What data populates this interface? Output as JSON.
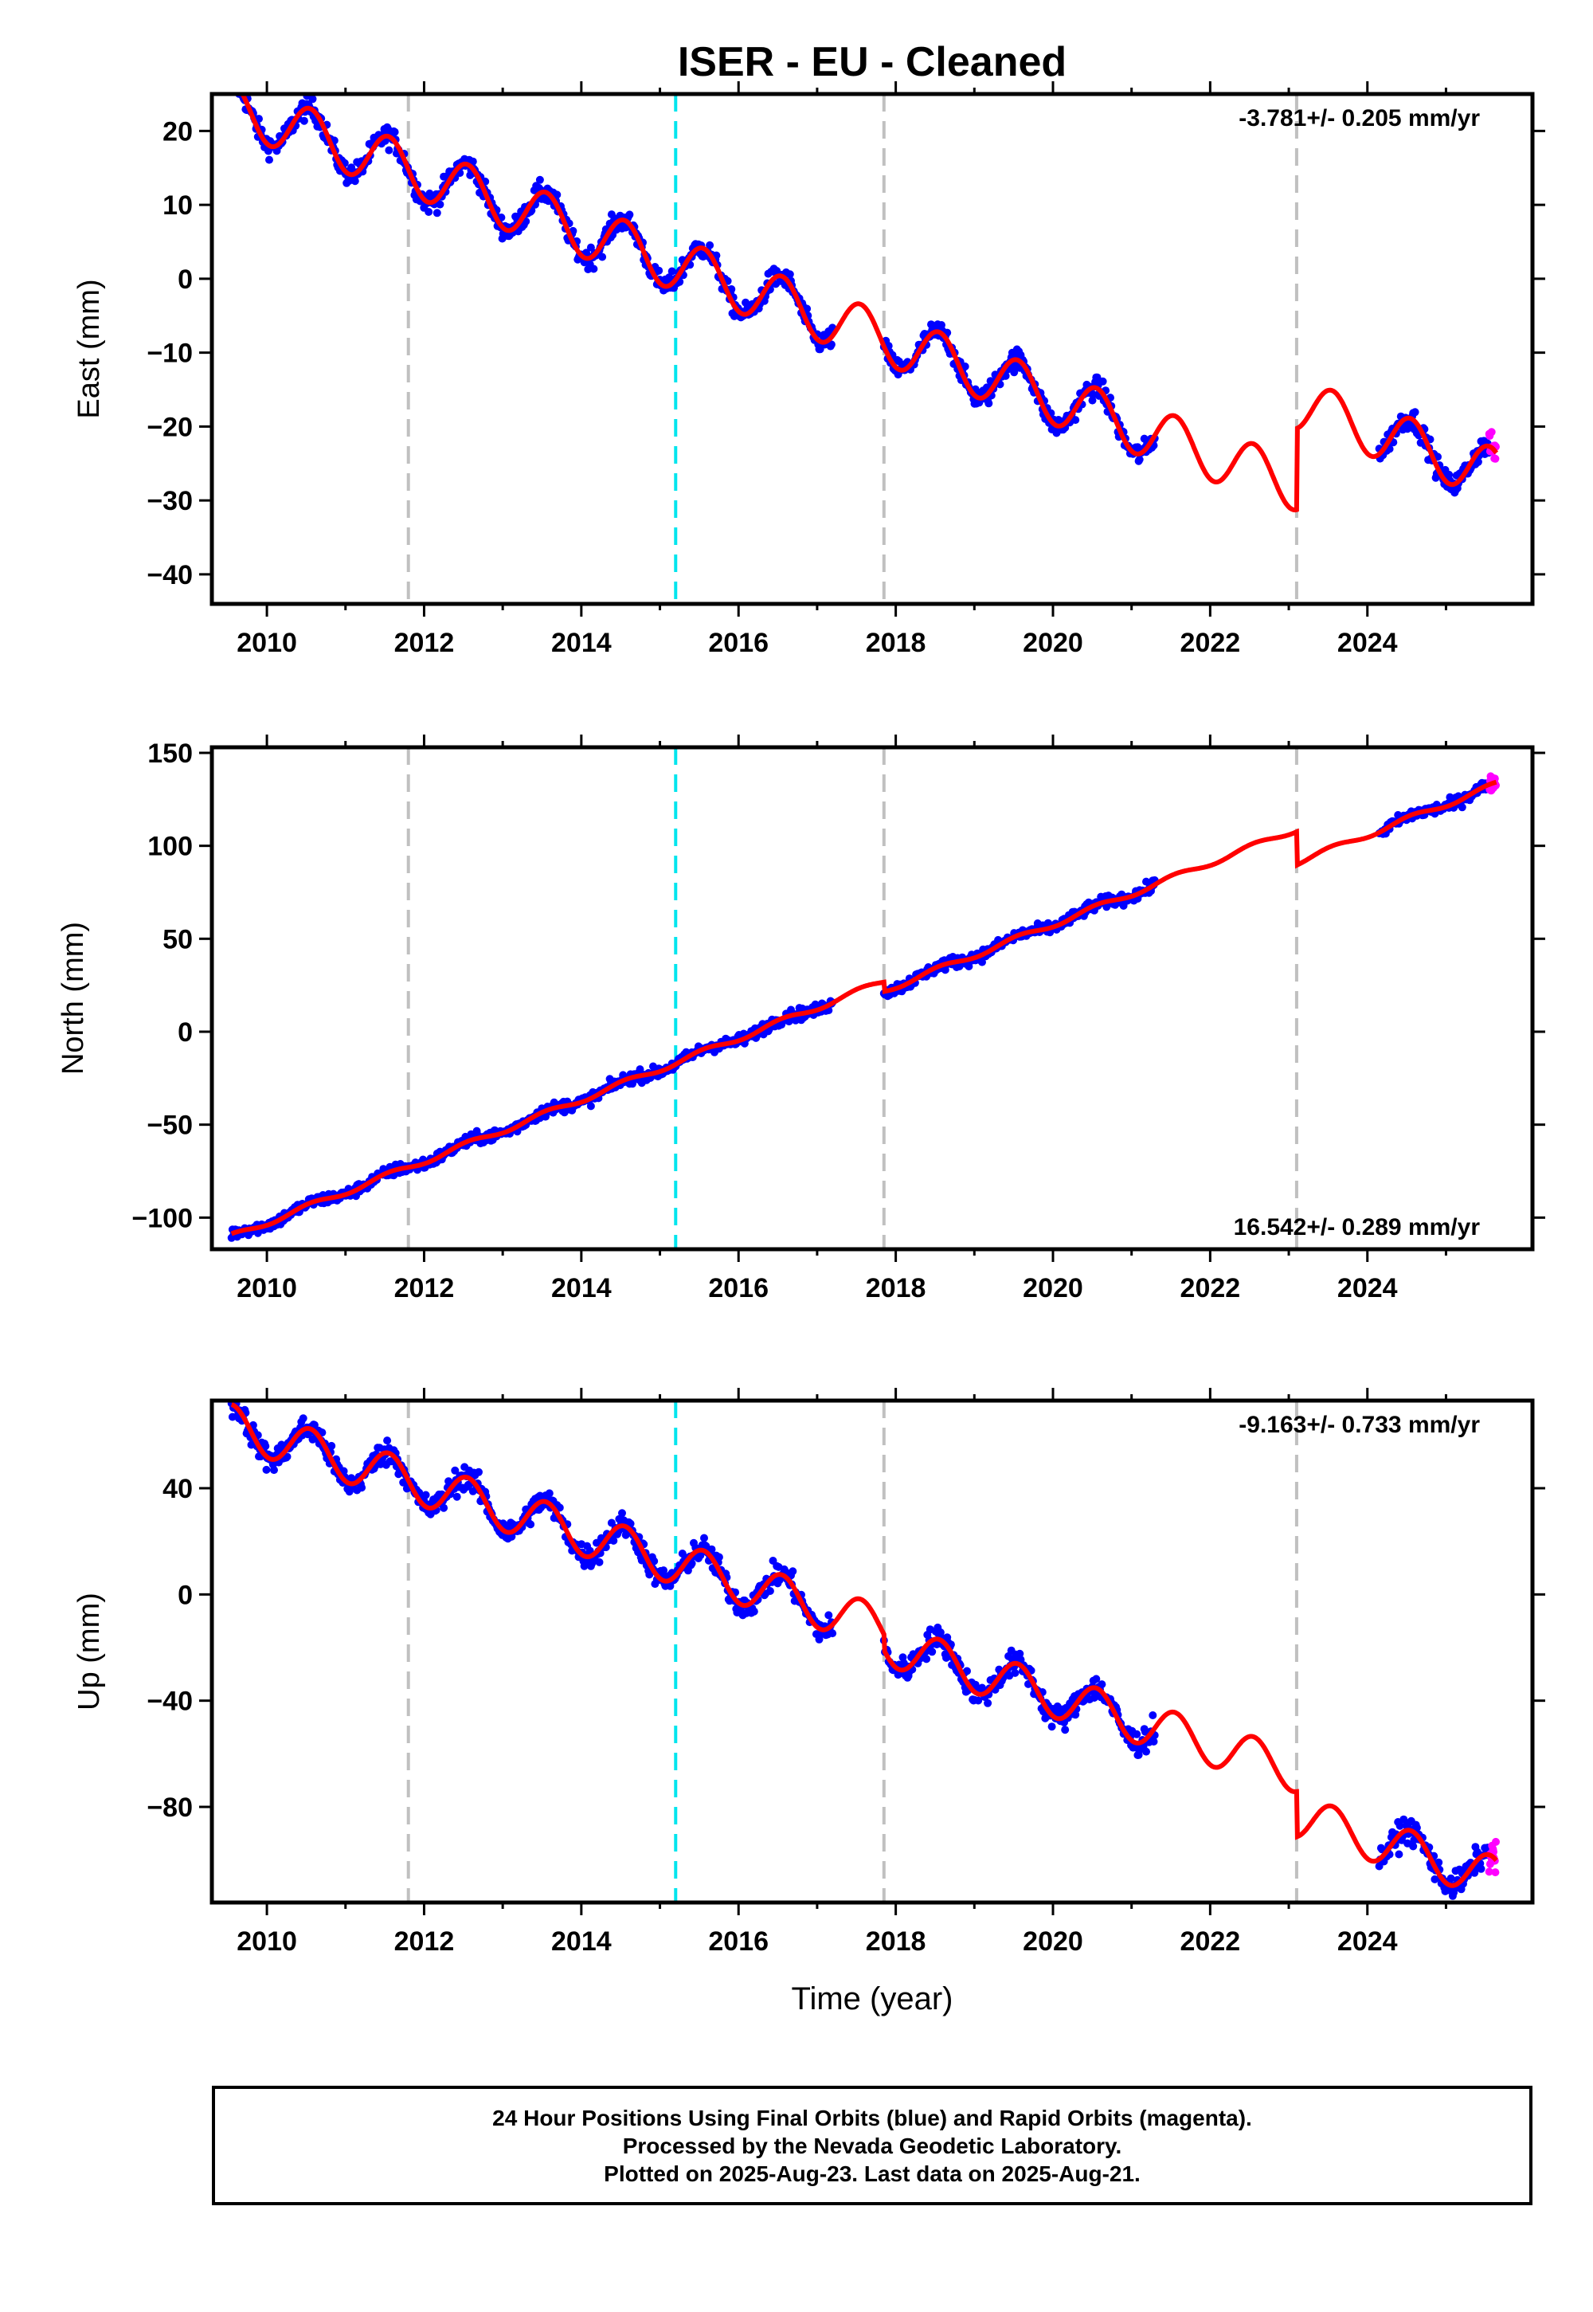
{
  "chart_data": [
    {
      "type": "scatter",
      "panel": "east",
      "title": "ISER  - EU - Cleaned",
      "ylabel": "East (mm)",
      "xlabel": "",
      "xlim": [
        2009.3,
        2026.1
      ],
      "ylim": [
        -44,
        25
      ],
      "yticks": [
        -40,
        -30,
        -20,
        -10,
        0,
        10,
        20
      ],
      "ytick_labels": [
        "−40",
        "−30",
        "−20",
        "−10",
        "0",
        "10",
        "20"
      ],
      "xticks": [
        2010,
        2012,
        2014,
        2016,
        2018,
        2020,
        2022,
        2024
      ],
      "xtick_labels": [
        "2010",
        "2012",
        "2014",
        "2016",
        "2018",
        "2020",
        "2022",
        "2024"
      ],
      "rate_label": "-3.781+/- 0.205 mm/yr",
      "rate_position": "top-right",
      "model": {
        "start": 23.5,
        "rate": -3.781,
        "amp": 3.5,
        "steps": [
          {
            "t": 2011.8,
            "dy": 0
          },
          {
            "t": 2015.2,
            "dy": 0
          },
          {
            "t": 2017.85,
            "dy": 0
          },
          {
            "t": 2023.1,
            "dy": 11
          }
        ]
      },
      "data_segments": [
        [
          2009.55,
          2017.2
        ],
        [
          2017.85,
          2021.3
        ],
        [
          2024.15,
          2025.55
        ]
      ],
      "rapid_segment": [
        2025.55,
        2025.64
      ],
      "scatter_spread": 1.4,
      "series": [
        {
          "name": "Final Orbits",
          "color": "#0000ff"
        },
        {
          "name": "Rapid Orbits",
          "color": "#ff00ff"
        },
        {
          "name": "Model",
          "color": "#ff0000"
        }
      ]
    },
    {
      "type": "scatter",
      "panel": "north",
      "ylabel": "North (mm)",
      "xlabel": "",
      "xlim": [
        2009.3,
        2026.1
      ],
      "ylim": [
        -117,
        153
      ],
      "yticks": [
        -100,
        -50,
        0,
        50,
        100,
        150
      ],
      "ytick_labels": [
        "−100",
        "−50",
        "0",
        "50",
        "100",
        "150"
      ],
      "xticks": [
        2010,
        2012,
        2014,
        2016,
        2018,
        2020,
        2022,
        2024
      ],
      "xtick_labels": [
        "2010",
        "2012",
        "2014",
        "2016",
        "2018",
        "2020",
        "2022",
        "2024"
      ],
      "rate_label": "16.542+/- 0.289 mm/yr",
      "rate_position": "bottom-right",
      "model": {
        "start": -111,
        "rate": 16.542,
        "amp": 1.5,
        "steps": [
          {
            "t": 2011.8,
            "dy": 0
          },
          {
            "t": 2015.2,
            "dy": 0
          },
          {
            "t": 2017.85,
            "dy": -5
          },
          {
            "t": 2023.1,
            "dy": -18
          }
        ]
      },
      "data_segments": [
        [
          2009.55,
          2017.2
        ],
        [
          2017.85,
          2021.3
        ],
        [
          2024.15,
          2025.55
        ]
      ],
      "rapid_segment": [
        2025.55,
        2025.64
      ],
      "scatter_spread": 3,
      "series": [
        {
          "name": "Final Orbits",
          "color": "#0000ff"
        },
        {
          "name": "Rapid Orbits",
          "color": "#ff00ff"
        },
        {
          "name": "Model",
          "color": "#ff0000"
        }
      ]
    },
    {
      "type": "scatter",
      "panel": "up",
      "ylabel": "Up (mm)",
      "xlabel": "Time (year)",
      "xlim": [
        2009.3,
        2026.1
      ],
      "ylim": [
        -116,
        73
      ],
      "yticks": [
        -80,
        -40,
        0,
        40
      ],
      "ytick_labels": [
        "−80",
        "−40",
        "0",
        "40"
      ],
      "xticks": [
        2010,
        2012,
        2014,
        2016,
        2018,
        2020,
        2022,
        2024
      ],
      "xtick_labels": [
        "2010",
        "2012",
        "2014",
        "2016",
        "2018",
        "2020",
        "2022",
        "2024"
      ],
      "rate_label": "-9.163+/- 0.733 mm/yr",
      "rate_position": "top-right",
      "model": {
        "start": 64,
        "rate": -9.163,
        "amp": 8,
        "steps": [
          {
            "t": 2011.8,
            "dy": 0
          },
          {
            "t": 2015.2,
            "dy": 0
          },
          {
            "t": 2017.85,
            "dy": -6
          },
          {
            "t": 2023.1,
            "dy": -17
          }
        ]
      },
      "data_segments": [
        [
          2009.55,
          2017.2
        ],
        [
          2017.85,
          2021.3
        ],
        [
          2024.15,
          2025.55
        ]
      ],
      "rapid_segment": [
        2025.55,
        2025.64
      ],
      "scatter_spread": 4.5,
      "series": [
        {
          "name": "Final Orbits",
          "color": "#0000ff"
        },
        {
          "name": "Rapid Orbits",
          "color": "#ff00ff"
        },
        {
          "name": "Model",
          "color": "#ff0000"
        }
      ]
    }
  ],
  "vertical_lines": [
    {
      "t": 2011.8,
      "color": "#c0c0c0"
    },
    {
      "t": 2015.2,
      "color": "#00e5ee"
    },
    {
      "t": 2017.85,
      "color": "#c0c0c0"
    },
    {
      "t": 2023.1,
      "color": "#c0c0c0"
    }
  ],
  "footer": {
    "line1": "24 Hour Positions Using Final Orbits (blue) and Rapid Orbits (magenta).",
    "line2": "Processed by the Nevada Geodetic Laboratory.",
    "line3": "Plotted on 2025-Aug-23. Last data on 2025-Aug-21."
  }
}
